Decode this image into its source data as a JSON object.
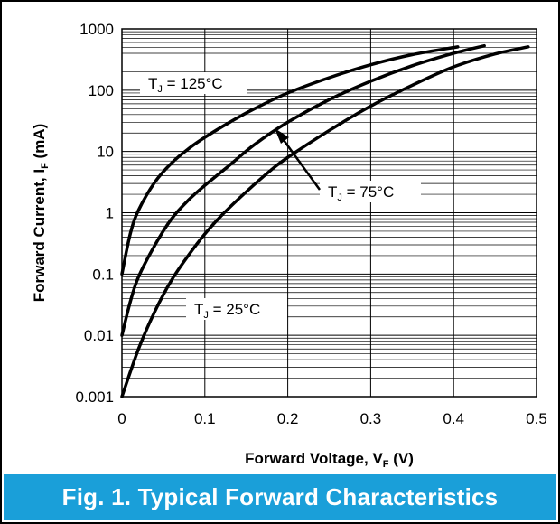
{
  "caption": "Fig. 1.  Typical Forward Characteristics",
  "chart_data": {
    "type": "line",
    "title": "Fig. 1.  Typical Forward Characteristics",
    "xlabel": {
      "main": "Forward Voltage, V",
      "sub": "F",
      "unit": " (V)"
    },
    "ylabel": {
      "main": "Forward Current, I",
      "sub": "F",
      "unit": " (mA)"
    },
    "xlim": [
      0,
      0.5
    ],
    "ylim": [
      0.001,
      1000
    ],
    "yscale": "log",
    "grid": true,
    "xticks": [
      {
        "value": 0,
        "label": "0"
      },
      {
        "value": 0.1,
        "label": "0.1"
      },
      {
        "value": 0.2,
        "label": "0.2"
      },
      {
        "value": 0.3,
        "label": "0.3"
      },
      {
        "value": 0.4,
        "label": "0.4"
      },
      {
        "value": 0.5,
        "label": "0.5"
      }
    ],
    "yticks": [
      {
        "value": 0.001,
        "label": "0.001"
      },
      {
        "value": 0.01,
        "label": "0.01"
      },
      {
        "value": 0.1,
        "label": "0.1"
      },
      {
        "value": 1,
        "label": "1"
      },
      {
        "value": 10,
        "label": "10"
      },
      {
        "value": 100,
        "label": "100"
      },
      {
        "value": 1000,
        "label": "1000"
      }
    ],
    "series": [
      {
        "name": "TJ = 125°C",
        "label": {
          "main": "T",
          "sub": "J",
          "rest": " = 125°C"
        },
        "x": [
          0,
          0.01,
          0.02,
          0.04,
          0.06,
          0.08,
          0.1,
          0.13,
          0.16,
          0.2,
          0.25,
          0.3,
          0.35,
          0.405
        ],
        "y": [
          0.1,
          0.45,
          1.1,
          3.2,
          6.5,
          11,
          17,
          30,
          50,
          90,
          160,
          260,
          380,
          510
        ]
      },
      {
        "name": "TJ = 75°C",
        "label": {
          "main": "T",
          "sub": "J",
          "rest": " = 75°C"
        },
        "x": [
          0,
          0.01,
          0.02,
          0.04,
          0.06,
          0.08,
          0.1,
          0.13,
          0.16,
          0.2,
          0.25,
          0.3,
          0.35,
          0.4,
          0.437
        ],
        "y": [
          0.01,
          0.035,
          0.09,
          0.3,
          0.8,
          1.6,
          2.8,
          6,
          13,
          30,
          70,
          140,
          250,
          400,
          530
        ]
      },
      {
        "name": "TJ = 25°C",
        "label": {
          "main": "T",
          "sub": "J",
          "rest": " = 25°C"
        },
        "x": [
          0,
          0.02,
          0.04,
          0.06,
          0.08,
          0.1,
          0.12,
          0.15,
          0.18,
          0.2,
          0.25,
          0.3,
          0.35,
          0.4,
          0.45,
          0.49
        ],
        "y": [
          0.001,
          0.006,
          0.025,
          0.08,
          0.2,
          0.45,
          0.9,
          2.2,
          5,
          8,
          22,
          55,
          120,
          240,
          390,
          510
        ]
      }
    ]
  }
}
